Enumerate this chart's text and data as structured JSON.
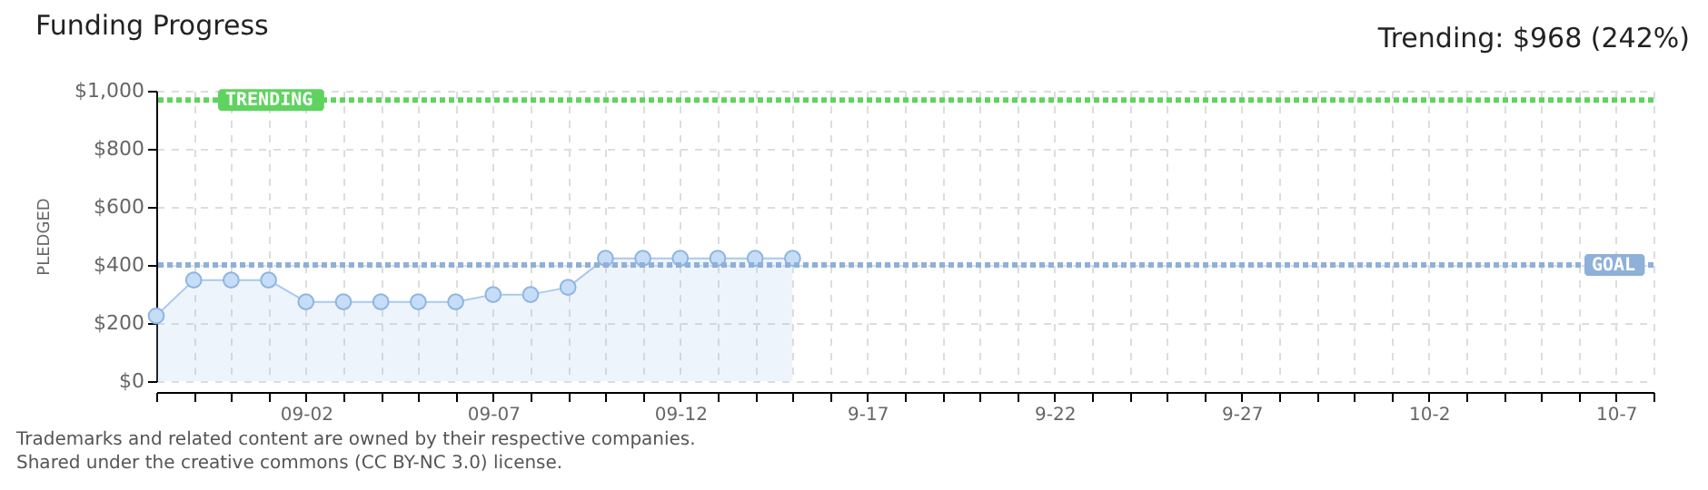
{
  "chart_data": {
    "type": "area",
    "title": "Funding Progress",
    "ylabel": "PLEDGED",
    "annotations": [
      "Trending: $968 (242%)",
      "Trademarks and related content are owned by their respective companies.",
      "Shared under the creative commons (CC BY-NC 3.0) license."
    ],
    "x": [
      "--08-29",
      "--08-30",
      "--08-31",
      "--09-01",
      "--09-02",
      "--09-03",
      "--09-04",
      "--09-05",
      "--09-06",
      "--09-07",
      "--09-08",
      "--09-09",
      "--09-10",
      "--09-11",
      "--09-12",
      "--09-13",
      "--09-14",
      "--09-15"
    ],
    "series": [
      {
        "color": "#a9c9ef",
        "values": [
          225,
          348,
          348,
          348,
          273,
          273,
          273,
          273,
          273,
          298,
          298,
          323,
          423,
          423,
          423,
          423,
          423,
          423
        ]
      }
    ],
    "xlim": [
      "--08-29",
      "--10-08"
    ],
    "xticks": [
      {
        "value": "--08-29",
        "label": null
      },
      {
        "value": "--08-30",
        "label": null
      },
      {
        "value": "--08-31",
        "label": null
      },
      {
        "value": "--09-01",
        "label": null
      },
      {
        "value": "--09-02",
        "label": "09-02"
      },
      {
        "value": "--09-03",
        "label": null
      },
      {
        "value": "--09-04",
        "label": null
      },
      {
        "value": "--09-05",
        "label": null
      },
      {
        "value": "--09-06",
        "label": null
      },
      {
        "value": "--09-07",
        "label": "09-07"
      },
      {
        "value": "--09-08",
        "label": null
      },
      {
        "value": "--09-09",
        "label": null
      },
      {
        "value": "--09-10",
        "label": null
      },
      {
        "value": "--09-11",
        "label": null
      },
      {
        "value": "--09-12",
        "label": "09-12"
      },
      {
        "value": "--09-13",
        "label": null
      },
      {
        "value": "--09-14",
        "label": null
      },
      {
        "value": "--09-15",
        "label": null
      },
      {
        "value": "--09-16",
        "label": null
      },
      {
        "value": "--09-17",
        "label": "9-17"
      },
      {
        "value": "--09-18",
        "label": null
      },
      {
        "value": "--09-19",
        "label": null
      },
      {
        "value": "--09-20",
        "label": null
      },
      {
        "value": "--09-21",
        "label": null
      },
      {
        "value": "--09-22",
        "label": "9-22"
      },
      {
        "value": "--09-23",
        "label": null
      },
      {
        "value": "--09-24",
        "label": null
      },
      {
        "value": "--09-25",
        "label": null
      },
      {
        "value": "--09-26",
        "label": null
      },
      {
        "value": "--09-27",
        "label": "9-27"
      },
      {
        "value": "--09-28",
        "label": null
      },
      {
        "value": "--09-29",
        "label": null
      },
      {
        "value": "--09-30",
        "label": null
      },
      {
        "value": "--10-01",
        "label": null
      },
      {
        "value": "--10-02",
        "label": "10-2"
      },
      {
        "value": "--10-03",
        "label": null
      },
      {
        "value": "--10-04",
        "label": null
      },
      {
        "value": "--10-05",
        "label": null
      },
      {
        "value": "--10-06",
        "label": null
      },
      {
        "value": "--10-07",
        "label": "10-7"
      },
      {
        "value": "--10-08",
        "label": null
      }
    ],
    "ylim": [
      0,
      1000
    ],
    "yticks": [
      {
        "value": 0,
        "label": "$0"
      },
      {
        "value": 200,
        "label": "$200"
      },
      {
        "value": 400,
        "label": "$400"
      },
      {
        "value": 600,
        "label": "$600"
      },
      {
        "value": 800,
        "label": "$800"
      },
      {
        "value": 1000,
        "label": "$1,000"
      }
    ],
    "ref_lines": [
      {
        "axis": "y",
        "value": 968,
        "label": "TRENDING",
        "color": "#5fd35f",
        "line_style": "dotted"
      },
      {
        "axis": "y",
        "value": 400,
        "label": "GOAL",
        "color": "#8fb0d8",
        "line_style": "dotted"
      }
    ],
    "grid": true,
    "marker": "circle"
  }
}
